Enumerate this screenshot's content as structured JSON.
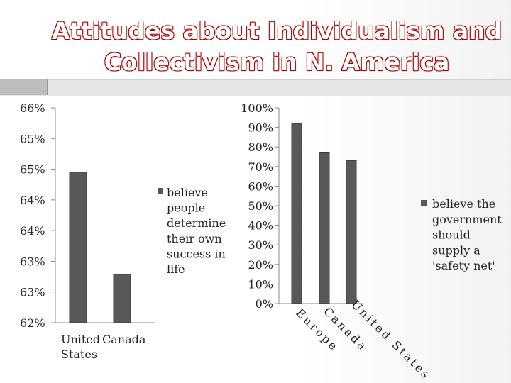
{
  "title_lines": [
    "Attitudes about Individualism and",
    "Collectivism in N. America"
  ],
  "colors": {
    "bar": "#595959",
    "bar_edge": "#3a3a3a",
    "axis": "#888888",
    "title_outline": "#a80000"
  },
  "chart_data": [
    {
      "type": "bar",
      "categories": [
        "United States",
        "Canada"
      ],
      "category_label_lines": [
        [
          "United",
          "States"
        ],
        [
          "Canada"
        ]
      ],
      "series": [
        {
          "name": "believe people determine their own success in life",
          "values": [
            64.8,
            62.9
          ]
        }
      ],
      "legend_lines": [
        "believe",
        "people",
        "determine",
        "their own",
        "success in",
        "life"
      ],
      "yticks": [
        "62%",
        "63%",
        "63%",
        "64%",
        "64%",
        "65%",
        "65%",
        "66%"
      ],
      "ylim": [
        62,
        66
      ],
      "legend_position": "right",
      "grid": false
    },
    {
      "type": "bar",
      "categories": [
        "Europe",
        "Canada",
        "United States"
      ],
      "series": [
        {
          "name": "believe the government should supply a 'safety net'",
          "values": [
            92,
            77,
            73
          ]
        }
      ],
      "legend_lines": [
        "believe the",
        "government",
        "should",
        "supply a",
        "'safety net'"
      ],
      "yticks": [
        "0%",
        "10%",
        "20%",
        "30%",
        "40%",
        "50%",
        "60%",
        "70%",
        "80%",
        "90%",
        "100%"
      ],
      "ylim": [
        0,
        100
      ],
      "legend_position": "right",
      "grid": false
    }
  ]
}
